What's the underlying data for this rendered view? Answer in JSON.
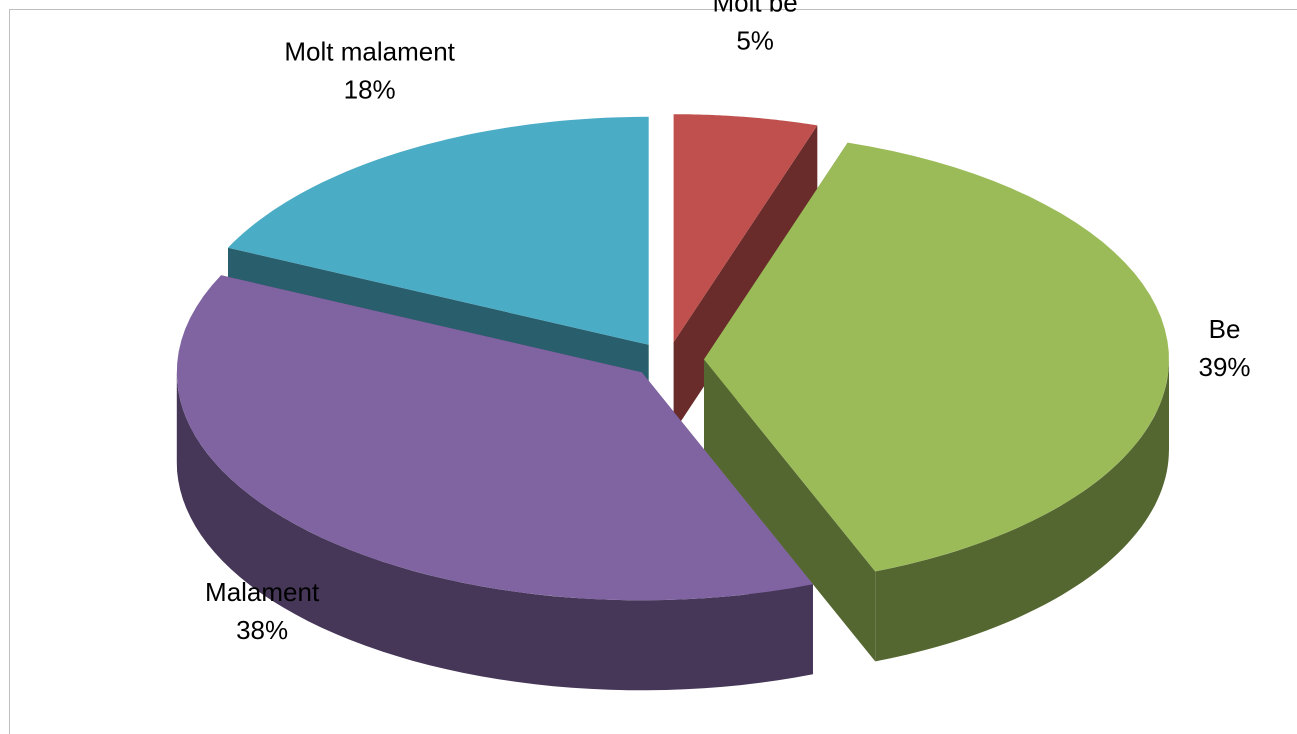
{
  "chart_data": {
    "type": "pie3d",
    "categories": [
      "Molt be",
      "Be",
      "Malament",
      "Molt malament"
    ],
    "values": [
      5,
      39,
      38,
      18
    ],
    "value_labels": [
      "5%",
      "39%",
      "38%",
      "18%"
    ],
    "colors": [
      "#c0504d",
      "#9bbb59",
      "#8064a2",
      "#4bacc6"
    ],
    "exploded": true
  }
}
